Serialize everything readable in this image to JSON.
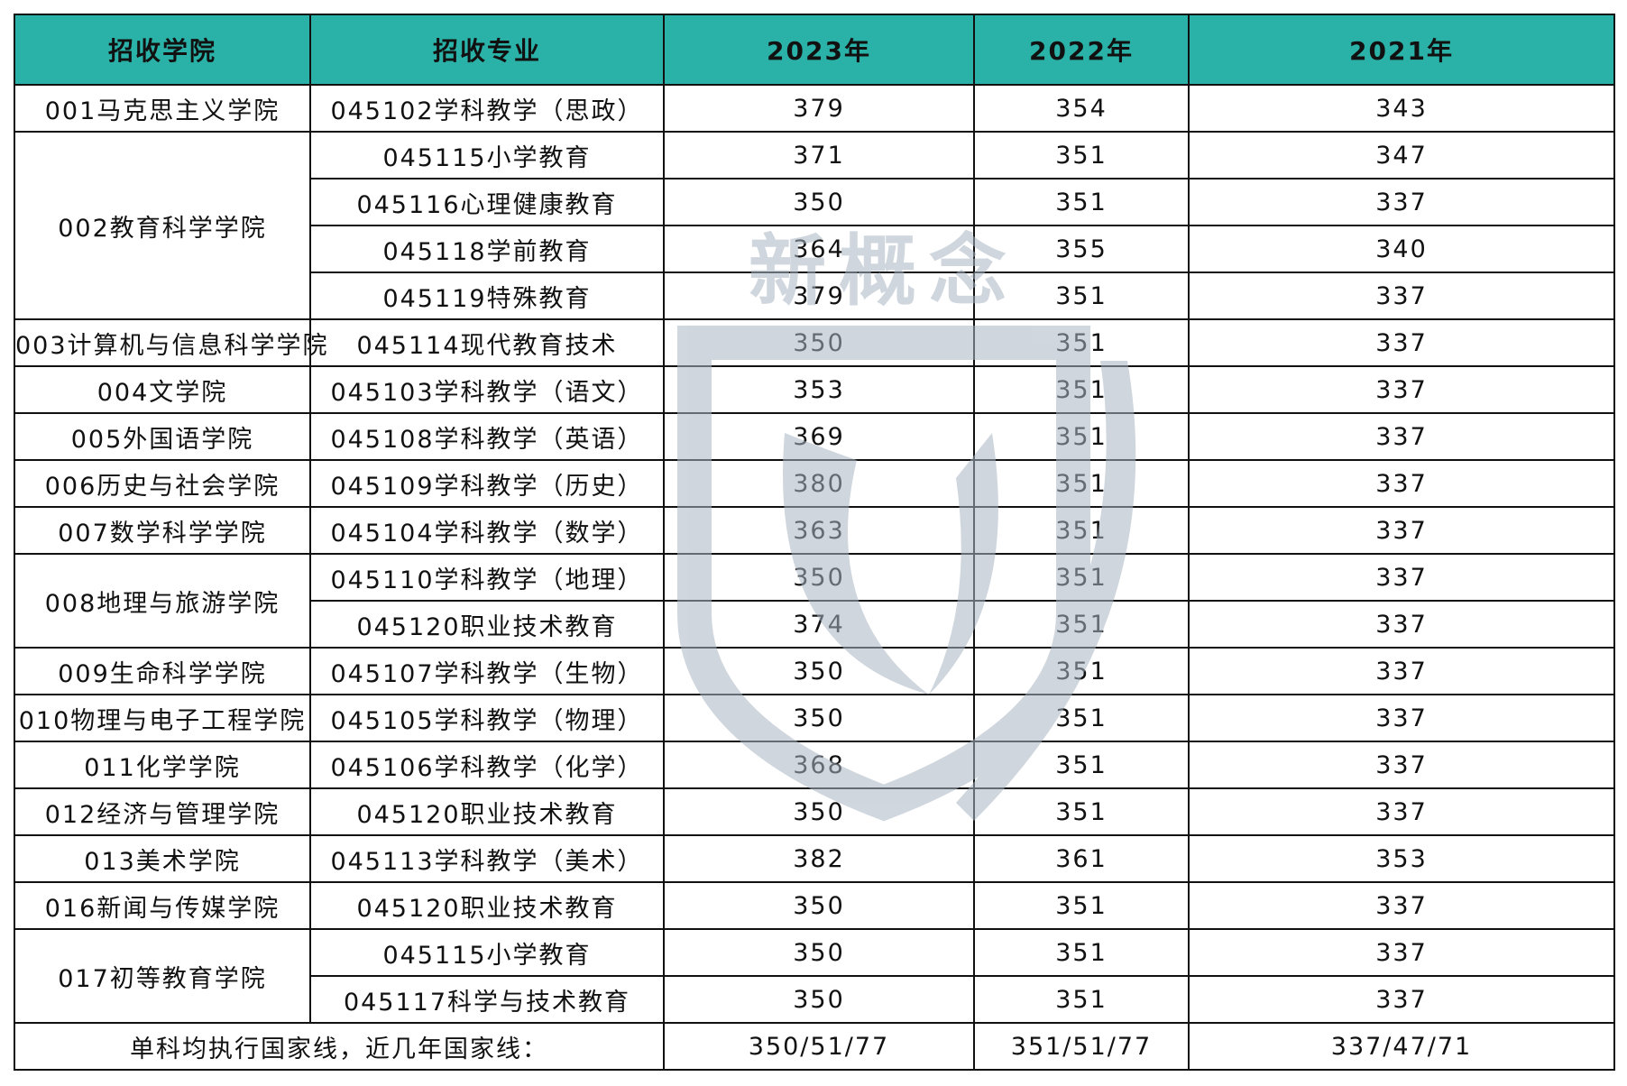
{
  "header": [
    "招收学院",
    "招收专业",
    "2023年",
    "2022年",
    "2021年"
  ],
  "groups": [
    {
      "college": "001马克思主义学院",
      "rows": [
        [
          "045102学科教学（思政）",
          "379",
          "354",
          "343"
        ]
      ]
    },
    {
      "college": "002教育科学学院",
      "rows": [
        [
          "045115小学教育",
          "371",
          "351",
          "347"
        ],
        [
          "045116心理健康教育",
          "350",
          "351",
          "337"
        ],
        [
          "045118学前教育",
          "364",
          "355",
          "340"
        ],
        [
          "045119特殊教育",
          "379",
          "351",
          "337"
        ]
      ]
    },
    {
      "college": "003计算机与信息科学学院",
      "rows": [
        [
          "045114现代教育技术",
          "350",
          "351",
          "337"
        ]
      ]
    },
    {
      "college": "004文学院",
      "rows": [
        [
          "045103学科教学（语文）",
          "353",
          "351",
          "337"
        ]
      ]
    },
    {
      "college": "005外国语学院",
      "rows": [
        [
          "045108学科教学（英语）",
          "369",
          "351",
          "337"
        ]
      ]
    },
    {
      "college": "006历史与社会学院",
      "rows": [
        [
          "045109学科教学（历史）",
          "380",
          "351",
          "337"
        ]
      ]
    },
    {
      "college": "007数学科学学院",
      "rows": [
        [
          "045104学科教学（数学）",
          "363",
          "351",
          "337"
        ]
      ]
    },
    {
      "college": "008地理与旅游学院",
      "rows": [
        [
          "045110学科教学（地理）",
          "350",
          "351",
          "337"
        ],
        [
          "045120职业技术教育",
          "374",
          "351",
          "337"
        ]
      ]
    },
    {
      "college": "009生命科学学院",
      "rows": [
        [
          "045107学科教学（生物）",
          "350",
          "351",
          "337"
        ]
      ]
    },
    {
      "college": "010物理与电子工程学院",
      "rows": [
        [
          "045105学科教学（物理）",
          "350",
          "351",
          "337"
        ]
      ]
    },
    {
      "college": "011化学学院",
      "rows": [
        [
          "045106学科教学（化学）",
          "368",
          "351",
          "337"
        ]
      ]
    },
    {
      "college": "012经济与管理学院",
      "rows": [
        [
          "045120职业技术教育",
          "350",
          "351",
          "337"
        ]
      ]
    },
    {
      "college": "013美术学院",
      "rows": [
        [
          "045113学科教学（美术）",
          "382",
          "361",
          "353"
        ]
      ]
    },
    {
      "college": "016新闻与传媒学院",
      "rows": [
        [
          "045120职业技术教育",
          "350",
          "351",
          "337"
        ]
      ]
    },
    {
      "college": "017初等教育学院",
      "rows": [
        [
          "045115小学教育",
          "350",
          "351",
          "337"
        ],
        [
          "045117科学与技术教育",
          "350",
          "351",
          "337"
        ]
      ]
    }
  ],
  "footer": {
    "label": "单科均执行国家线，近几年国家线：",
    "values": [
      "350/51/77",
      "351/51/77",
      "337/47/71"
    ]
  },
  "watermark": {
    "text": "新概念",
    "color": "#a9b6c2"
  }
}
